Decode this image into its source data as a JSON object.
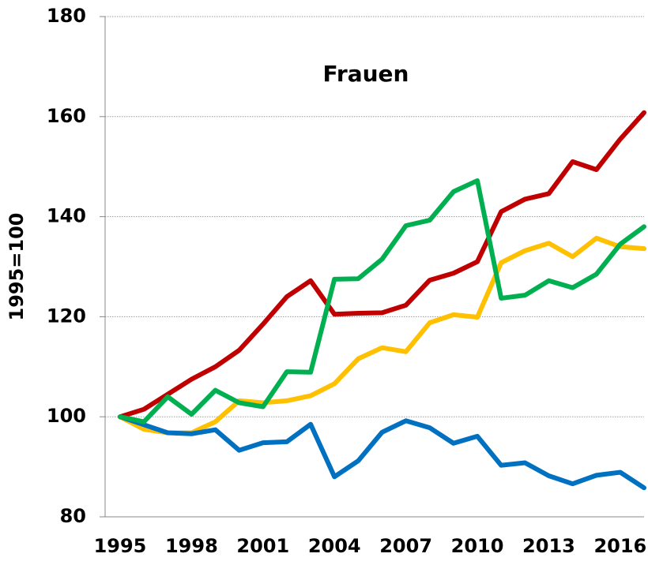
{
  "chart_data": {
    "type": "line",
    "title": "Frauen",
    "y_label": "1995=100",
    "x": [
      1995,
      1996,
      1997,
      1998,
      1999,
      2000,
      2001,
      2002,
      2003,
      2004,
      2005,
      2006,
      2007,
      2008,
      2009,
      2010,
      2011,
      2012,
      2013,
      2014,
      2015,
      2016,
      2017
    ],
    "xlim": [
      1994.37,
      2017
    ],
    "xticks": [
      1995,
      1998,
      2001,
      2004,
      2007,
      2010,
      2013,
      2016
    ],
    "ylim": [
      80,
      180
    ],
    "yticks": [
      80,
      100,
      120,
      140,
      160,
      180
    ],
    "grid": true,
    "series": [
      {
        "color": "#ffc000",
        "values": [
          100,
          97.5,
          96.8,
          96.8,
          99,
          103.2,
          102.8,
          103.2,
          104.2,
          106.6,
          111.6,
          113.8,
          113,
          118.8,
          120.4,
          119.9,
          130.8,
          133.2,
          134.7,
          132,
          135.7,
          134,
          133.6
        ]
      },
      {
        "color": "#0070c0",
        "values": [
          100,
          98.4,
          96.8,
          96.6,
          97.4,
          93.3,
          94.8,
          95,
          98.5,
          88,
          91.2,
          96.9,
          99.2,
          97.8,
          94.7,
          96.1,
          90.3,
          90.8,
          88.2,
          86.6,
          88.3,
          88.9,
          85.8
        ]
      },
      {
        "color": "#c00000",
        "values": [
          100,
          101.5,
          104.5,
          107.5,
          110,
          113.3,
          118.5,
          124,
          127.2,
          120.5,
          120.7,
          120.8,
          122.3,
          127.3,
          128.7,
          131,
          141,
          143.5,
          144.6,
          151,
          149.4,
          155.5,
          160.8
        ]
      },
      {
        "color": "#00b050",
        "values": [
          100,
          99,
          104,
          100.5,
          105.3,
          102.8,
          102,
          109,
          108.9,
          127.5,
          127.6,
          131.5,
          138.2,
          139.3,
          145,
          147.2,
          123.7,
          124.3,
          127.2,
          125.8,
          128.5,
          134.5,
          138
        ]
      }
    ]
  }
}
